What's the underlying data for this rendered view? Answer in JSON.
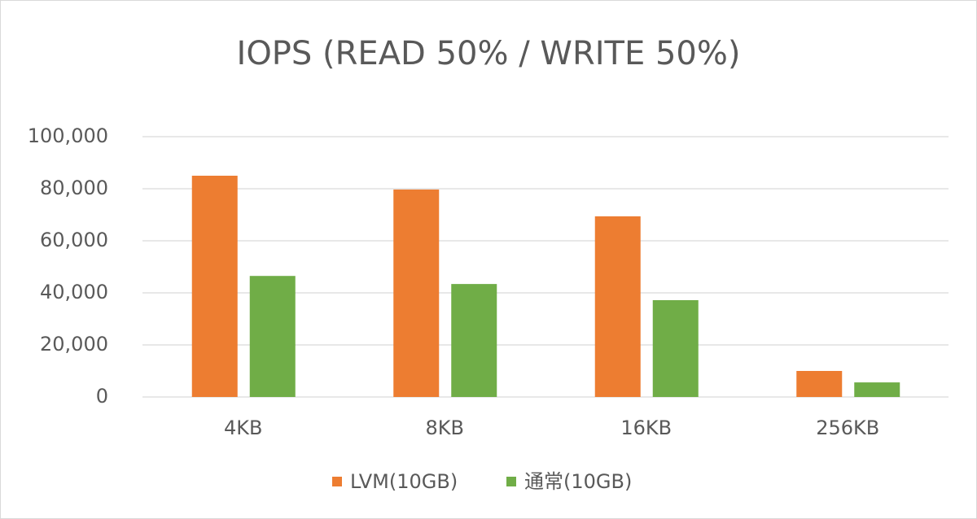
{
  "chart_data": {
    "type": "bar",
    "title": "IOPS (READ 50% / WRITE 50%)",
    "categories": [
      "4KB",
      "8KB",
      "16KB",
      "256KB"
    ],
    "series": [
      {
        "name": "LVM(10GB)",
        "color": "#ed7d31",
        "values": [
          85000,
          79700,
          69400,
          10000
        ]
      },
      {
        "name": "通常(10GB)",
        "color": "#70ad47",
        "values": [
          46500,
          43400,
          37200,
          5600
        ]
      }
    ],
    "ylim": [
      0,
      100000
    ],
    "yticks": [
      0,
      {
        "value": 20000,
        "label": "20,000"
      },
      {
        "value": 40000,
        "label": "40,000"
      },
      {
        "value": 60000,
        "label": "60,000"
      },
      {
        "value": 80000,
        "label": "80,000"
      },
      {
        "value": 100000,
        "label": "100,000"
      }
    ],
    "grid": true,
    "legend": "bottom"
  }
}
